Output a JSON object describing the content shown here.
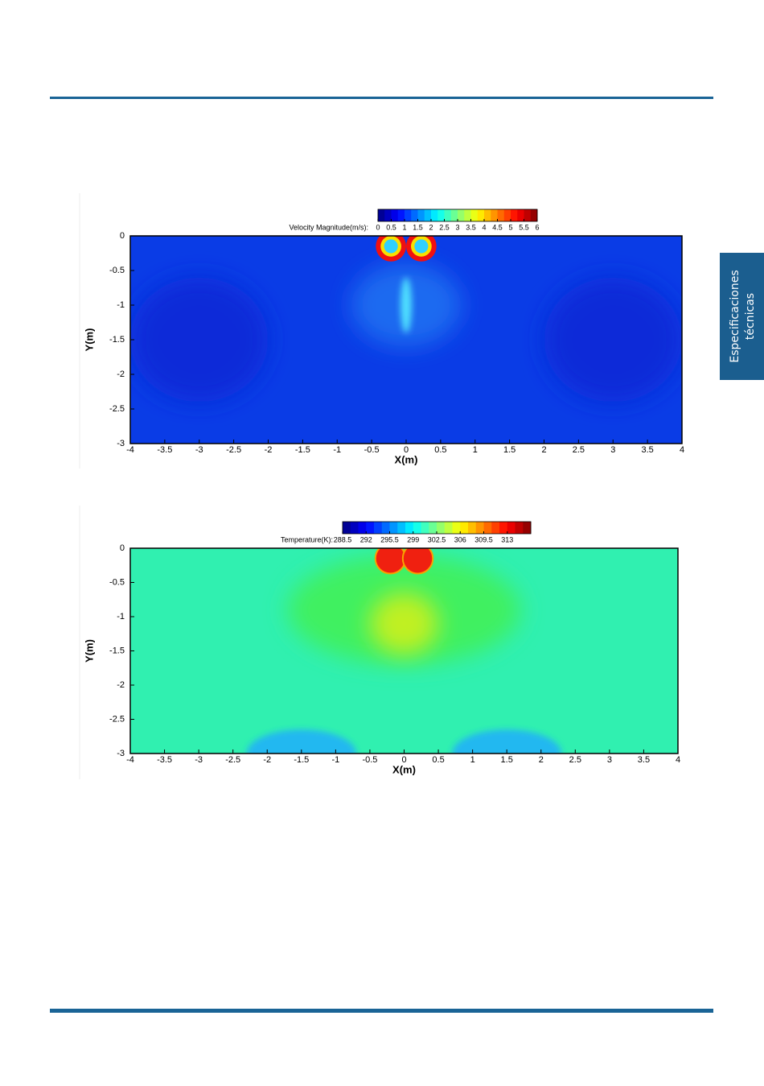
{
  "side_tab": [
    "Especificaciones",
    "técnicas"
  ],
  "figures": [
    {
      "type": "contour",
      "colorbar_label": "Velocity Magnitude(m/s):",
      "clim": [
        0,
        6
      ],
      "colorbar_ticks": [
        0,
        0.5,
        1,
        1.5,
        2,
        2.5,
        3,
        3.5,
        4,
        4.5,
        5,
        5.5,
        6
      ],
      "xlabel": "X(m)",
      "ylabel": "Y(m)",
      "xlim": [
        -4,
        4
      ],
      "ylim": [
        -3,
        0
      ],
      "xticks": [
        -4,
        -3.5,
        -3,
        -2.5,
        -2,
        -1.5,
        -1,
        -0.5,
        0,
        0.5,
        1,
        1.5,
        2,
        2.5,
        3,
        3.5,
        4
      ],
      "yticks": [
        0,
        -0.5,
        -1,
        -1.5,
        -2,
        -2.5,
        -3
      ]
    },
    {
      "type": "contour",
      "colorbar_label": "Temperature(K):",
      "clim": [
        288.5,
        316.5
      ],
      "colorbar_ticks": [
        288.5,
        292,
        295.5,
        299,
        302.5,
        306,
        309.5,
        313
      ],
      "xlabel": "X(m)",
      "ylabel": "Y(m)",
      "xlim": [
        -4,
        4
      ],
      "ylim": [
        -3,
        0
      ],
      "xticks": [
        -4,
        -3.5,
        -3,
        -2.5,
        -2,
        -1.5,
        -1,
        -0.5,
        0,
        0.5,
        1,
        1.5,
        2,
        2.5,
        3,
        3.5,
        4
      ],
      "yticks": [
        0,
        -0.5,
        -1,
        -1.5,
        -2,
        -2.5,
        -3
      ]
    }
  ]
}
